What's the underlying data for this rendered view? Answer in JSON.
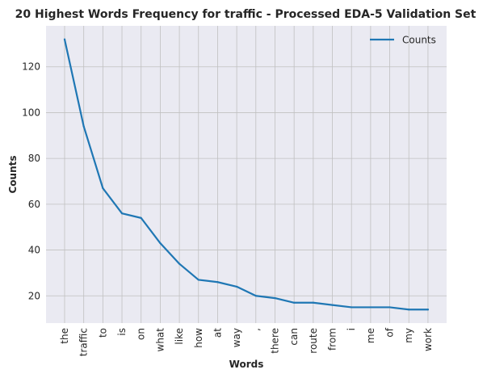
{
  "chart_data": {
    "type": "line",
    "title": "20 Highest Words Frequency for traffic - Processed EDA-5 Validation Set",
    "xlabel": "Words",
    "ylabel": "Counts",
    "categories": [
      "the",
      "traffic",
      "to",
      "is",
      "on",
      "what",
      "like",
      "how",
      "at",
      "way",
      ",",
      "there",
      "can",
      "route",
      "from",
      "i",
      "me",
      "of",
      "my",
      "work"
    ],
    "series": [
      {
        "name": "Counts",
        "values": [
          132,
          94,
          67,
          56,
          54,
          43,
          34,
          27,
          26,
          24,
          20,
          19,
          17,
          17,
          16,
          15,
          15,
          15,
          14,
          14
        ]
      }
    ],
    "ylim": [
      8.1,
      137.9
    ],
    "yticks": [
      20,
      40,
      60,
      80,
      100,
      120
    ],
    "grid": true,
    "legend_position": "top-right",
    "colors": {
      "line": "#1f77b4",
      "plot_background": "#eaeaf2",
      "grid": "#c0c0c0"
    }
  }
}
